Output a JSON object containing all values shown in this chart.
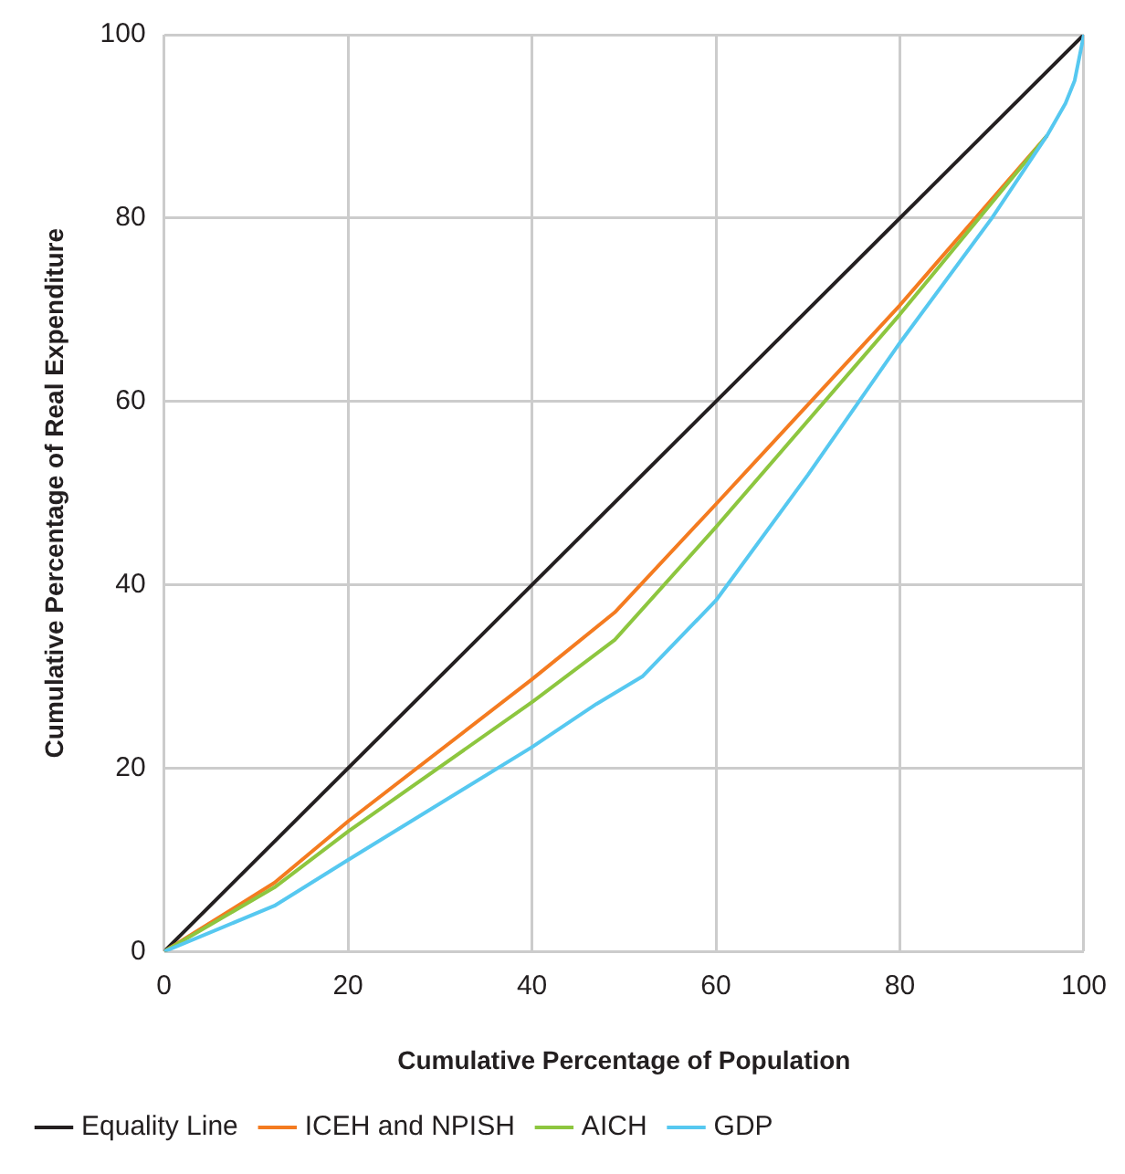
{
  "chart_data": {
    "type": "line",
    "xlabel": "Cumulative Percentage of Population",
    "ylabel": "Cumulative Percentage of Real Expenditure",
    "xlim": [
      0,
      100
    ],
    "xticks": [
      0,
      20,
      40,
      60,
      80,
      100
    ],
    "ylim": [
      0,
      100
    ],
    "yticks": [
      0,
      20,
      40,
      60,
      80,
      100
    ],
    "grid": true,
    "legend": "bottom",
    "marker": "none",
    "line_style": "solid",
    "series": [
      {
        "name": "Equality Line",
        "color": "#231f20",
        "x": [
          0,
          100
        ],
        "values": [
          0,
          100
        ]
      },
      {
        "name": "ICEH and NPISH",
        "color": "#f47b20",
        "x": [
          0,
          12,
          20,
          40,
          49,
          60,
          80,
          96
        ],
        "values": [
          0,
          7.5,
          14.2,
          29.7,
          37,
          48.8,
          70.5,
          89
        ]
      },
      {
        "name": "AICH",
        "color": "#8dc63f",
        "x": [
          0,
          12,
          20,
          40,
          49,
          60,
          80,
          96
        ],
        "values": [
          0,
          7,
          13.1,
          27.2,
          34,
          46.3,
          69.5,
          89
        ]
      },
      {
        "name": "GDP",
        "color": "#56c8f0",
        "x": [
          0,
          12,
          20,
          40,
          47,
          52,
          60,
          70,
          80,
          90,
          96,
          98,
          99,
          100
        ],
        "values": [
          0,
          5,
          10,
          22.3,
          27,
          30,
          38.3,
          52,
          66.4,
          80,
          89,
          92.5,
          95,
          100
        ]
      }
    ]
  }
}
